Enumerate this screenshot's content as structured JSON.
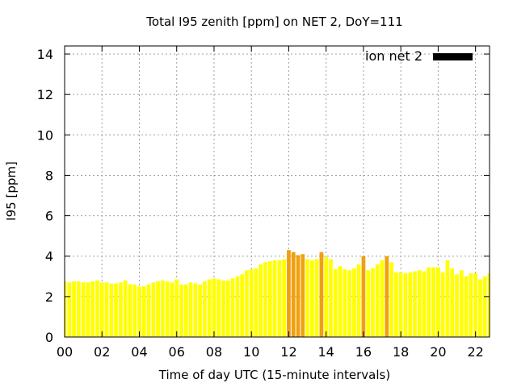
{
  "chart_data": {
    "type": "bar",
    "title": "Total I95 zenith [ppm] on NET 2, DoY=111",
    "xlabel": "Time of day UTC (15-minute intervals)",
    "ylabel": "I95 [ppm]",
    "ylim": [
      0,
      14.4
    ],
    "yticks": [
      0,
      2,
      4,
      6,
      8,
      10,
      12,
      14
    ],
    "yticks_labels": [
      "0",
      "2",
      "4",
      "6",
      "8",
      "10",
      "12",
      "14"
    ],
    "xlim_hours": [
      0,
      22.75
    ],
    "xticks_hours": [
      0,
      2,
      4,
      6,
      8,
      10,
      12,
      14,
      16,
      18,
      20,
      22
    ],
    "xticks_labels": [
      "00",
      "02",
      "04",
      "06",
      "08",
      "10",
      "12",
      "14",
      "16",
      "18",
      "20",
      "22"
    ],
    "interval_hours": 0.25,
    "grid": true,
    "legend_position": "top-right",
    "series": [
      {
        "name": "ion net 2",
        "legend_color": "#000000",
        "values": [
          2.75,
          2.7,
          2.75,
          2.75,
          2.7,
          2.7,
          2.75,
          2.8,
          2.7,
          2.7,
          2.65,
          2.65,
          2.7,
          2.8,
          2.6,
          2.6,
          2.5,
          2.5,
          2.6,
          2.7,
          2.75,
          2.8,
          2.75,
          2.7,
          2.85,
          2.6,
          2.6,
          2.7,
          2.65,
          2.6,
          2.75,
          2.85,
          2.9,
          2.85,
          2.8,
          2.8,
          2.9,
          3.0,
          3.1,
          3.3,
          3.35,
          3.4,
          3.6,
          3.7,
          3.75,
          3.8,
          3.8,
          3.85,
          4.3,
          4.2,
          4.05,
          4.1,
          3.85,
          3.8,
          3.85,
          4.2,
          3.95,
          3.85,
          3.35,
          3.5,
          3.35,
          3.3,
          3.4,
          3.6,
          4.0,
          3.3,
          3.4,
          3.6,
          3.8,
          4.0,
          3.7,
          3.2,
          3.2,
          3.15,
          3.2,
          3.25,
          3.3,
          3.25,
          3.45,
          3.45,
          3.45,
          3.2,
          3.8,
          3.4,
          3.1,
          3.3,
          3.0,
          3.15,
          3.15,
          2.85,
          3.0,
          3.15
        ],
        "colors": [
          "#ffff00",
          "#ffff00",
          "#ffff00",
          "#ffff00",
          "#ffff00",
          "#ffff00",
          "#ffff00",
          "#ffff00",
          "#ffff00",
          "#ffff00",
          "#ffff00",
          "#ffff00",
          "#ffff00",
          "#ffff00",
          "#ffff00",
          "#ffff00",
          "#ffff00",
          "#ffff00",
          "#ffff00",
          "#ffff00",
          "#ffff00",
          "#ffff00",
          "#ffff00",
          "#ffff00",
          "#ffff00",
          "#ffff00",
          "#ffff00",
          "#ffff00",
          "#ffff00",
          "#ffff00",
          "#ffff00",
          "#ffff00",
          "#ffff00",
          "#ffff00",
          "#ffff00",
          "#ffff00",
          "#ffff00",
          "#ffff00",
          "#ffff00",
          "#ffff00",
          "#ffff00",
          "#ffff00",
          "#ffff00",
          "#ffff00",
          "#ffff00",
          "#ffff00",
          "#ffff00",
          "#ffff00",
          "#f0a010",
          "#f0a010",
          "#f0a010",
          "#f0a010",
          "#ffff00",
          "#ffff00",
          "#ffff00",
          "#f0a010",
          "#ffff00",
          "#ffff00",
          "#ffff00",
          "#ffff00",
          "#ffff00",
          "#ffff00",
          "#ffff00",
          "#ffff00",
          "#f0a010",
          "#ffff00",
          "#ffff00",
          "#ffff00",
          "#ffff00",
          "#f0a010",
          "#ffff00",
          "#ffff00",
          "#ffff00",
          "#ffff00",
          "#ffff00",
          "#ffff00",
          "#ffff00",
          "#ffff00",
          "#ffff00",
          "#ffff00",
          "#ffff00",
          "#ffff00",
          "#ffff00",
          "#ffff00",
          "#ffff00",
          "#ffff00",
          "#ffff00",
          "#ffff00",
          "#ffff00",
          "#ffff00",
          "#ffff00",
          "#ffff00"
        ]
      }
    ]
  }
}
